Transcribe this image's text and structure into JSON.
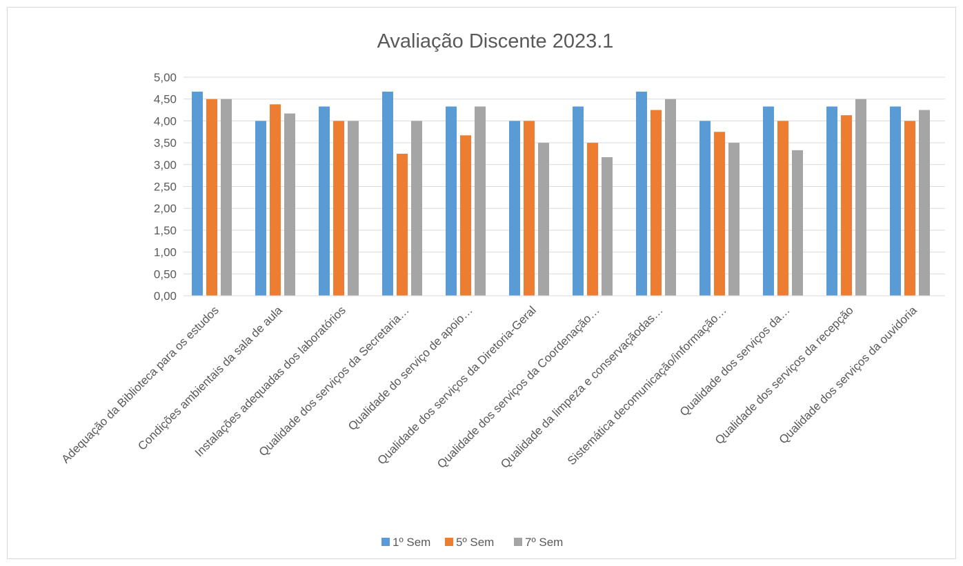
{
  "chart_data": {
    "type": "bar",
    "title": "Avaliação Discente 2023.1",
    "xlabel": "",
    "ylabel": "",
    "ylim": [
      0,
      5
    ],
    "ytick_step": 0.5,
    "yticks": [
      "0,00",
      "0,50",
      "1,00",
      "1,50",
      "2,00",
      "2,50",
      "3,00",
      "3,50",
      "4,00",
      "4,50",
      "5,00"
    ],
    "grid": true,
    "legend_position": "bottom",
    "categories": [
      "Adequação da Biblioteca para os estudos",
      "Condições ambientais da sala de aula",
      "Instalações adequadas dos laboratórios",
      "Qualidade dos serviços da Secretaria…",
      "Qualidade do serviço de apoio…",
      "Qualidade dos serviços da Diretoria-Geral",
      "Qualidade dos serviços da Coordenação…",
      "Qualidade da limpeza e conservaçãodas…",
      "Sistemática decomunicação/informação…",
      "Qualidade dos serviços da…",
      "Qualidade dos serviços da recepção",
      "Qualidade dos serviços da ouvidoria"
    ],
    "series": [
      {
        "name": "1º Sem",
        "color": "#5b9bd5",
        "values": [
          4.67,
          4.0,
          4.33,
          4.67,
          4.33,
          4.0,
          4.33,
          4.67,
          4.0,
          4.33,
          4.33,
          4.33
        ]
      },
      {
        "name": "5º Sem",
        "color": "#ed7d31",
        "values": [
          4.5,
          4.38,
          4.0,
          3.25,
          3.67,
          4.0,
          3.5,
          4.25,
          3.75,
          4.0,
          4.13,
          4.0
        ]
      },
      {
        "name": "7º Sem",
        "color": "#a5a5a5",
        "values": [
          4.5,
          4.17,
          4.0,
          4.0,
          4.33,
          3.5,
          3.17,
          4.5,
          3.5,
          3.33,
          4.5,
          4.25
        ]
      }
    ],
    "gridline_color": "#d9d9d9",
    "text_color": "#595959"
  }
}
